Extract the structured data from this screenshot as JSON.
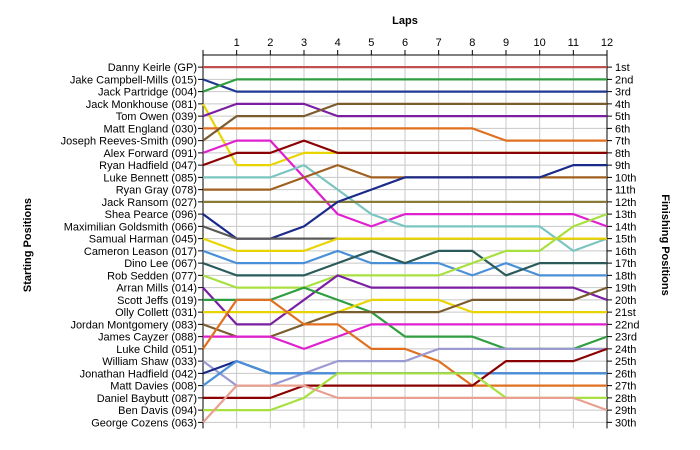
{
  "chart_data": {
    "type": "line",
    "xlabel": "Laps",
    "ylabel_left": "Starting Positions",
    "ylabel_right": "Finishing Positions",
    "x": [
      0,
      1,
      2,
      3,
      4,
      5,
      6,
      7,
      8,
      9,
      10,
      11,
      12
    ],
    "x_tick_labels": [
      "1",
      "2",
      "3",
      "4",
      "5",
      "6",
      "7",
      "8",
      "9",
      "10",
      "11",
      "12"
    ],
    "grid": true,
    "y_range": [
      1,
      30
    ],
    "y_inverted": true,
    "drivers_starting_order": [
      "Danny Keirle (GP)",
      "Jake Campbell-Mills (015)",
      "Jack Partridge (004)",
      "Jack Monkhouse (081)",
      "Tom Owen (039)",
      "Matt England (030)",
      "Joseph Reeves-Smith (090)",
      "Alex Forward (091)",
      "Ryan Hadfield (047)",
      "Luke Bennett (085)",
      "Ryan Gray (078)",
      "Jack Ransom (027)",
      "Shea Pearce (096)",
      "Maximilian Goldsmith (066)",
      "Samual Harman (045)",
      "Cameron Leason (017)",
      "Dino Lee (067)",
      "Rob Sedden (077)",
      "Arran Mills (014)",
      "Scott Jeffs (019)",
      "Olly Collett (031)",
      "Jordan Montgomery (083)",
      "James Cayzer (088)",
      "Luke Child (051)",
      "William Shaw (033)",
      "Jonathan Hadfield (042)",
      "Matt Davies (008)",
      "Daniel Baybutt (087)",
      "Ben Davis (094)",
      "George Cozens (063)"
    ],
    "finishing_positions": [
      "1st",
      "2nd",
      "3rd",
      "4th",
      "5th",
      "6th",
      "7th",
      "8th",
      "9th",
      "10th",
      "11th",
      "12th",
      "13th",
      "14th",
      "15th",
      "16th",
      "17th",
      "18th",
      "19th",
      "20th",
      "21st",
      "22nd",
      "23rd",
      "24th",
      "25th",
      "26th",
      "27th",
      "28th",
      "29th",
      "30th"
    ],
    "series": [
      {
        "color": "#c0504d",
        "values": [
          1,
          1,
          1,
          1,
          1,
          1,
          1,
          1,
          1,
          1,
          1,
          1,
          1
        ]
      },
      {
        "color": "#1f3a93",
        "values": [
          2,
          3,
          3,
          3,
          3,
          3,
          3,
          3,
          3,
          3,
          3,
          3,
          3
        ]
      },
      {
        "color": "#2e9e3e",
        "values": [
          3,
          2,
          2,
          2,
          2,
          2,
          2,
          2,
          2,
          2,
          2,
          2,
          2
        ]
      },
      {
        "color": "#e8d400",
        "values": [
          4,
          9,
          9,
          8,
          8,
          8,
          8,
          8,
          8,
          8,
          8,
          8,
          8
        ]
      },
      {
        "color": "#7b1fa2",
        "values": [
          5,
          4,
          4,
          4,
          5,
          5,
          5,
          5,
          5,
          5,
          5,
          5,
          5
        ]
      },
      {
        "color": "#e07020",
        "values": [
          6,
          6,
          6,
          6,
          6,
          6,
          6,
          6,
          6,
          7,
          7,
          7,
          7
        ]
      },
      {
        "color": "#7a5c2e",
        "values": [
          7,
          5,
          5,
          5,
          4,
          4,
          4,
          4,
          4,
          4,
          4,
          4,
          4
        ]
      },
      {
        "color": "#e020d0",
        "values": [
          8,
          7,
          7,
          10,
          13,
          14,
          13,
          13,
          13,
          13,
          13,
          13,
          14
        ]
      },
      {
        "color": "#8b0000",
        "values": [
          9,
          8,
          8,
          7,
          8,
          8,
          8,
          8,
          8,
          8,
          8,
          8,
          8
        ]
      },
      {
        "color": "#7ac5c0",
        "values": [
          10,
          10,
          10,
          9,
          11,
          13,
          14,
          14,
          14,
          14,
          14,
          16,
          15
        ]
      },
      {
        "color": "#a06020",
        "values": [
          11,
          11,
          11,
          10,
          9,
          10,
          10,
          10,
          10,
          10,
          10,
          10,
          10
        ]
      },
      {
        "color": "#8a7a3a",
        "values": [
          12,
          12,
          12,
          12,
          12,
          12,
          12,
          12,
          12,
          12,
          12,
          12,
          12
        ]
      },
      {
        "color": "#1a2a8a",
        "values": [
          13,
          15,
          15,
          14,
          12,
          11,
          10,
          10,
          10,
          10,
          10,
          9,
          9
        ]
      },
      {
        "color": "#5a5a5a",
        "values": [
          14,
          15,
          15,
          15,
          15,
          15,
          15,
          15,
          15,
          15,
          15,
          15,
          15
        ]
      },
      {
        "color": "#e8d400",
        "values": [
          15,
          16,
          16,
          16,
          15,
          15,
          15,
          15,
          15,
          15,
          15,
          15,
          15
        ]
      },
      {
        "color": "#4a90d9",
        "values": [
          16,
          17,
          17,
          17,
          16,
          17,
          17,
          17,
          18,
          17,
          18,
          18,
          18
        ]
      },
      {
        "color": "#2a5a5a",
        "values": [
          17,
          18,
          18,
          18,
          17,
          16,
          17,
          16,
          16,
          18,
          17,
          17,
          17
        ]
      },
      {
        "color": "#a8e040",
        "values": [
          18,
          19,
          19,
          19,
          18,
          18,
          18,
          18,
          17,
          16,
          16,
          14,
          13
        ]
      },
      {
        "color": "#7b1fa2",
        "values": [
          19,
          22,
          22,
          20,
          18,
          19,
          19,
          19,
          19,
          19,
          19,
          19,
          20
        ]
      },
      {
        "color": "#2e9e3e",
        "values": [
          20,
          20,
          20,
          19,
          20,
          21,
          23,
          23,
          23,
          24,
          24,
          24,
          23
        ]
      },
      {
        "color": "#e8d400",
        "values": [
          21,
          21,
          21,
          21,
          21,
          20,
          20,
          20,
          21,
          21,
          21,
          21,
          21
        ]
      },
      {
        "color": "#7a5c2e",
        "values": [
          22,
          23,
          23,
          22,
          21,
          21,
          21,
          21,
          20,
          20,
          20,
          20,
          19
        ]
      },
      {
        "color": "#e020d0",
        "values": [
          23,
          23,
          23,
          24,
          23,
          22,
          22,
          22,
          22,
          22,
          22,
          22,
          22
        ]
      },
      {
        "color": "#e07020",
        "values": [
          24,
          20,
          20,
          22,
          22,
          24,
          24,
          25,
          27,
          27,
          27,
          27,
          27
        ]
      },
      {
        "color": "#9a9ad0",
        "values": [
          25,
          27,
          27,
          26,
          25,
          25,
          25,
          24,
          24,
          24,
          24,
          24,
          24
        ]
      },
      {
        "color": "#1a2a8a",
        "values": [
          26,
          25,
          26,
          26,
          26,
          26,
          26,
          26,
          26,
          26,
          26,
          26,
          26
        ]
      },
      {
        "color": "#4a90d9",
        "values": [
          27,
          25,
          26,
          26,
          26,
          26,
          26,
          26,
          26,
          26,
          26,
          26,
          26
        ]
      },
      {
        "color": "#8b0000",
        "values": [
          28,
          28,
          28,
          27,
          27,
          27,
          27,
          27,
          27,
          25,
          25,
          25,
          24
        ]
      },
      {
        "color": "#a8e040",
        "values": [
          29,
          29,
          29,
          28,
          26,
          26,
          26,
          26,
          26,
          28,
          28,
          28,
          28
        ]
      },
      {
        "color": "#e8a090",
        "values": [
          30,
          27,
          27,
          27,
          28,
          28,
          28,
          28,
          28,
          28,
          28,
          28,
          29
        ]
      }
    ]
  }
}
